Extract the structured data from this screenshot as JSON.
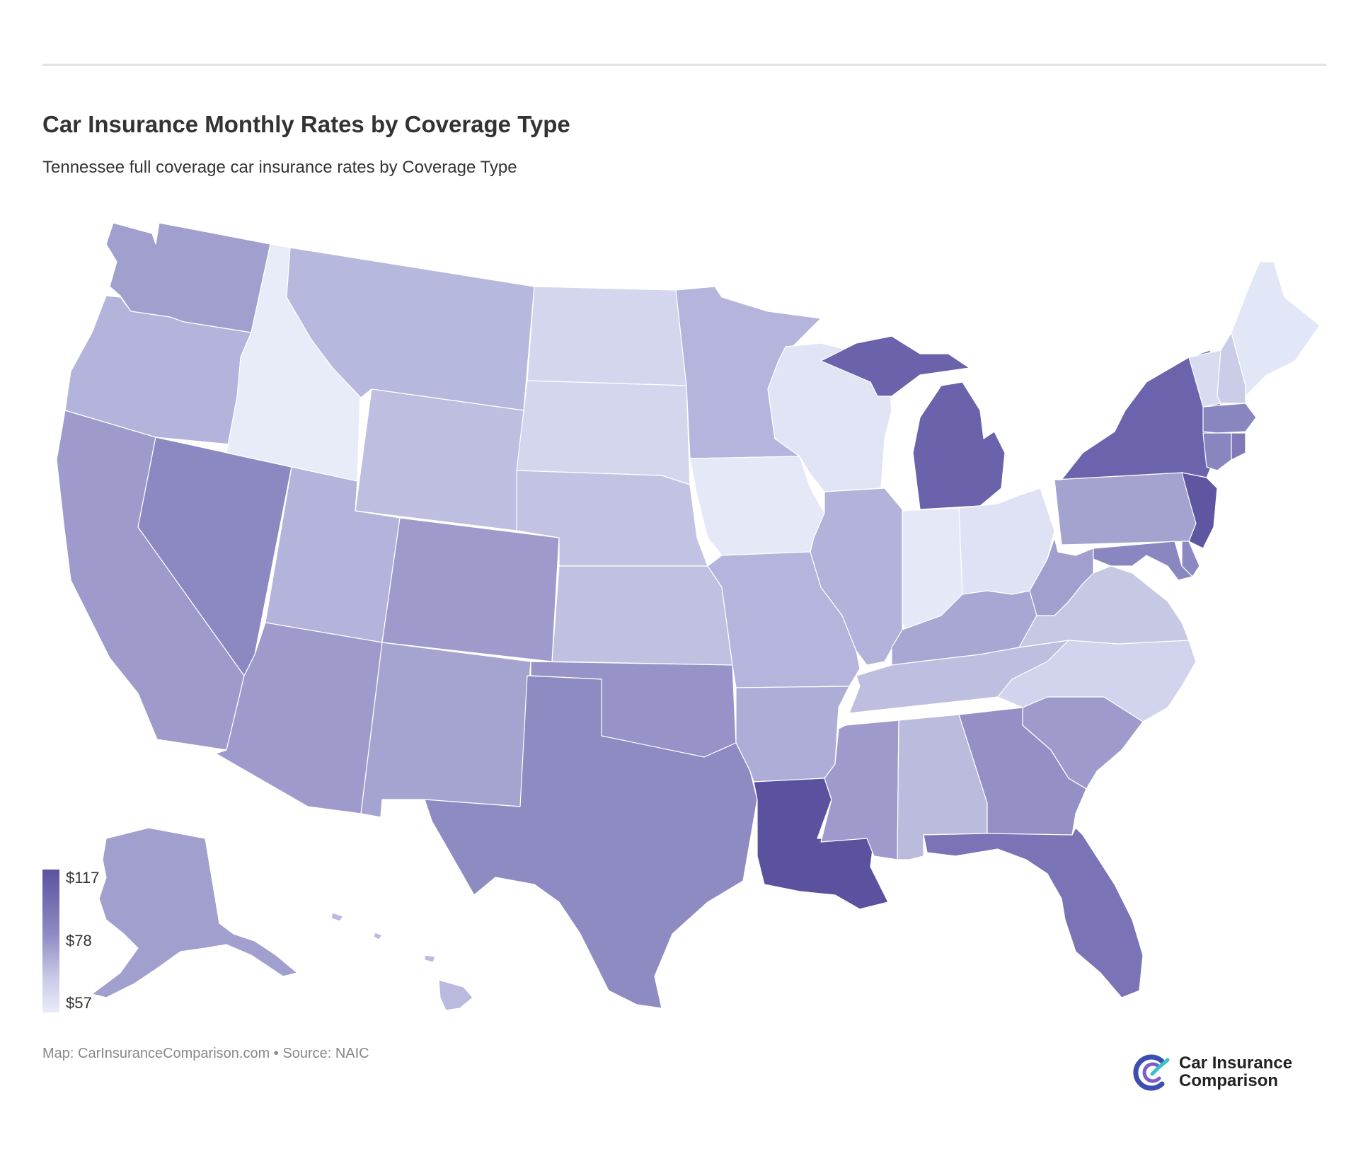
{
  "header": {
    "title": "Car Insurance Monthly Rates by Coverage Type",
    "subtitle": "Tennessee full coverage car insurance rates by Coverage Type"
  },
  "legend": {
    "max_label": "$117",
    "mid_label": "$78",
    "min_label": "$57",
    "colors": [
      "#5b529f",
      "#8f8ac4",
      "#c9c8e6",
      "#e9ecf9"
    ]
  },
  "footer": {
    "credit": "Map: CarInsuranceComparison.com • Source: NAIC"
  },
  "logo": {
    "line1": "Car Insurance",
    "line2": "Comparison",
    "colors": [
      "#3a4fb0",
      "#34c3c7",
      "#7c5ec9"
    ]
  },
  "state_colors": {
    "WA": "#a19fce",
    "OR": "#b3b3db",
    "CA": "#9e9bcc",
    "NV": "#8c88c1",
    "ID": "#e8ecf9",
    "MT": "#b7b8dd",
    "WY": "#bdbee0",
    "UT": "#b3b3db",
    "AZ": "#9e9bcc",
    "CO": "#9e9bcc",
    "NM": "#a5a4d1",
    "TX": "#8e8ac2",
    "ND": "#d4d6ee",
    "SD": "#d4d6ee",
    "NE": "#c2c3e2",
    "KS": "#c0c1e1",
    "OK": "#9793c8",
    "MN": "#b4b4dc",
    "IA": "#e4e8f7",
    "MO": "#b4b4dc",
    "AR": "#adadd8",
    "LA": "#5b529f",
    "WI": "#e1e4f5",
    "IL": "#b2b2da",
    "MI": "#6a62ab",
    "IN": "#e4e8f7",
    "OH": "#dfe2f4",
    "KY": "#a8a7d3",
    "TN": "#bebfe0",
    "MS": "#9e9bcc",
    "AL": "#bbbbde",
    "GA": "#9490c6",
    "FL": "#7a74b6",
    "SC": "#9e9bcc",
    "NC": "#d2d3ed",
    "VA": "#c7c8e4",
    "WV": "#a19fce",
    "PA": "#a4a3d0",
    "NY": "#6b64ad",
    "VT": "#d9dbf0",
    "NH": "#cbcce7",
    "ME": "#e2e7f7",
    "MA": "#8985bf",
    "CT": "#8985bf",
    "RI": "#7f79b9",
    "NJ": "#5f56a2",
    "DE": "#8c88c1",
    "MD": "#8a86c0",
    "AK": "#a19fce",
    "HI": "#b9badd"
  }
}
